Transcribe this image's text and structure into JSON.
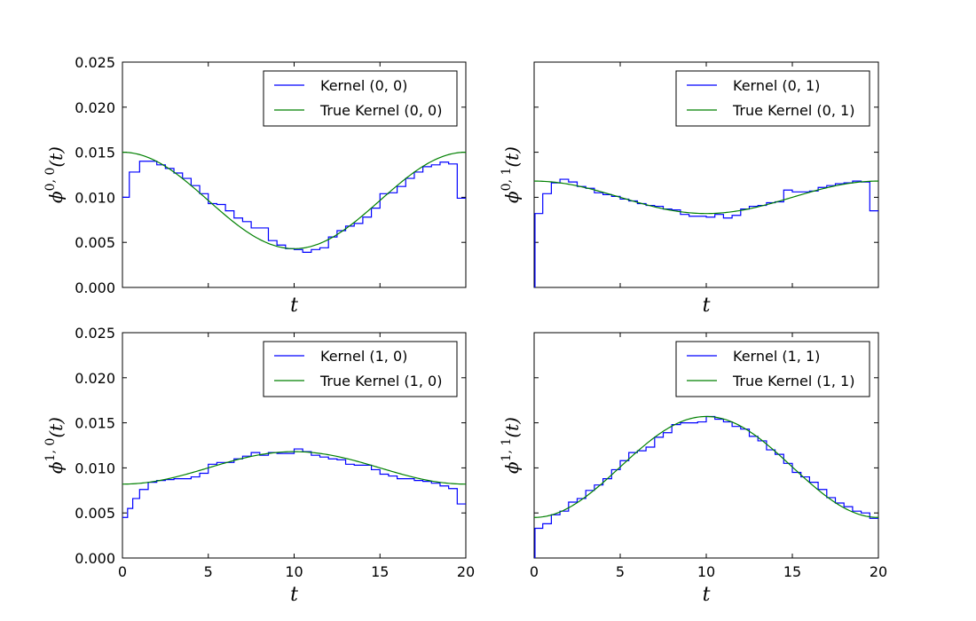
{
  "chart_data": [
    {
      "type": "line",
      "xlabel": "t",
      "ylabel": {
        "base": "ϕ",
        "sup": "0, 0",
        "arg": "(t)"
      },
      "xlim": [
        0,
        20
      ],
      "ylim": [
        0,
        0.025
      ],
      "xticks": [
        "0",
        "5",
        "10",
        "15",
        "20"
      ],
      "yticks": [
        "0.000",
        "0.005",
        "0.010",
        "0.015",
        "0.020",
        "0.025"
      ],
      "show_xticklabels": false,
      "show_yticklabels": true,
      "grid": false,
      "legend_position": "top-right",
      "series": [
        {
          "name": "Kernel (0, 0)",
          "color": "#0000ff",
          "step": true,
          "x": [
            0,
            0.4,
            1.0,
            2.0,
            2.5,
            3.0,
            3.5,
            4.0,
            4.5,
            5.0,
            5.5,
            6.0,
            6.5,
            7.0,
            7.5,
            8.0,
            8.5,
            9.0,
            9.5,
            10.0,
            10.5,
            11.0,
            11.5,
            12.0,
            12.5,
            13.0,
            13.5,
            14.0,
            14.5,
            15.0,
            15.5,
            16.0,
            16.5,
            17.0,
            17.5,
            18.0,
            18.5,
            19.0,
            19.5,
            20.0
          ],
          "y": [
            0.01,
            0.0128,
            0.014,
            0.0136,
            0.0132,
            0.0127,
            0.0121,
            0.0113,
            0.0104,
            0.0093,
            0.0092,
            0.0085,
            0.0077,
            0.0073,
            0.0066,
            0.0066,
            0.0052,
            0.0047,
            0.0043,
            0.0042,
            0.0039,
            0.0042,
            0.0044,
            0.0056,
            0.0063,
            0.0068,
            0.0071,
            0.0078,
            0.0088,
            0.0104,
            0.0105,
            0.0112,
            0.0121,
            0.0128,
            0.0134,
            0.0136,
            0.0139,
            0.0137,
            0.0099,
            0.0099
          ]
        },
        {
          "name": "True Kernel (0, 0)",
          "color": "#008000",
          "mean": 0.00965,
          "amplitude": 0.00535,
          "phase": "max"
        }
      ]
    },
    {
      "type": "line",
      "xlabel": "t",
      "ylabel": {
        "base": "ϕ",
        "sup": "0, 1",
        "arg": "(t)"
      },
      "xlim": [
        0,
        20
      ],
      "ylim": [
        0,
        0.025
      ],
      "xticks": [
        "0",
        "5",
        "10",
        "15",
        "20"
      ],
      "yticks": [
        "0.000",
        "0.005",
        "0.010",
        "0.015",
        "0.020",
        "0.025"
      ],
      "show_xticklabels": false,
      "show_yticklabels": false,
      "grid": false,
      "legend_position": "top-right",
      "series": [
        {
          "name": "Kernel (0, 1)",
          "color": "#0000ff",
          "step": true,
          "x": [
            0,
            0.05,
            0.5,
            1.0,
            1.5,
            2.0,
            2.5,
            3.0,
            3.5,
            4.0,
            4.5,
            5.0,
            5.5,
            6.0,
            6.5,
            7.0,
            7.5,
            8.0,
            8.5,
            9.0,
            9.5,
            10.0,
            10.5,
            11.0,
            11.5,
            12.0,
            12.5,
            13.0,
            13.5,
            14.0,
            14.5,
            15.0,
            15.5,
            16.0,
            16.5,
            17.0,
            17.5,
            18.0,
            18.5,
            19.0,
            19.5,
            20.0
          ],
          "y": [
            0.0,
            0.0082,
            0.0104,
            0.0116,
            0.012,
            0.0117,
            0.0112,
            0.011,
            0.0105,
            0.0103,
            0.0101,
            0.0098,
            0.0096,
            0.0093,
            0.0091,
            0.009,
            0.0087,
            0.0086,
            0.0081,
            0.0079,
            0.0079,
            0.0078,
            0.0081,
            0.0077,
            0.008,
            0.0087,
            0.009,
            0.0091,
            0.0094,
            0.0095,
            0.0108,
            0.0106,
            0.0106,
            0.0107,
            0.0111,
            0.0113,
            0.0115,
            0.0116,
            0.0118,
            0.0117,
            0.0085,
            0.0085
          ]
        },
        {
          "name": "True Kernel (0, 1)",
          "color": "#008000",
          "mean": 0.01,
          "amplitude": 0.0018,
          "phase": "max"
        }
      ]
    },
    {
      "type": "line",
      "xlabel": "t",
      "ylabel": {
        "base": "ϕ",
        "sup": "1, 0",
        "arg": "(t)"
      },
      "xlim": [
        0,
        20
      ],
      "ylim": [
        0,
        0.025
      ],
      "xticks": [
        "0",
        "5",
        "10",
        "15",
        "20"
      ],
      "yticks": [
        "0.000",
        "0.005",
        "0.010",
        "0.015",
        "0.020",
        "0.025"
      ],
      "show_xticklabels": true,
      "show_yticklabels": true,
      "grid": false,
      "legend_position": "top-right",
      "series": [
        {
          "name": "Kernel (1, 0)",
          "color": "#0000ff",
          "step": true,
          "x": [
            0,
            0.3,
            0.6,
            1.0,
            1.5,
            2.0,
            2.5,
            3.0,
            3.5,
            4.0,
            4.5,
            5.0,
            5.5,
            6.0,
            6.5,
            7.0,
            7.5,
            8.0,
            8.5,
            9.0,
            9.5,
            10.0,
            10.5,
            11.0,
            11.5,
            12.0,
            12.5,
            13.0,
            13.5,
            14.0,
            14.5,
            15.0,
            15.5,
            16.0,
            16.5,
            17.0,
            17.5,
            18.0,
            18.5,
            19.0,
            19.5,
            20.0
          ],
          "y": [
            0.0045,
            0.0055,
            0.0066,
            0.0076,
            0.0084,
            0.0086,
            0.0087,
            0.0088,
            0.0088,
            0.009,
            0.0094,
            0.0104,
            0.0106,
            0.0106,
            0.011,
            0.0113,
            0.0117,
            0.0114,
            0.0117,
            0.0116,
            0.0116,
            0.0121,
            0.0118,
            0.0114,
            0.0112,
            0.011,
            0.0109,
            0.0104,
            0.0103,
            0.0103,
            0.0098,
            0.0093,
            0.0091,
            0.0088,
            0.0088,
            0.0086,
            0.0085,
            0.0083,
            0.008,
            0.0077,
            0.006,
            0.006
          ]
        },
        {
          "name": "True Kernel (1, 0)",
          "color": "#008000",
          "mean": 0.01,
          "amplitude": 0.0018,
          "phase": "min"
        }
      ]
    },
    {
      "type": "line",
      "xlabel": "t",
      "ylabel": {
        "base": "ϕ",
        "sup": "1, 1",
        "arg": "(t)"
      },
      "xlim": [
        0,
        20
      ],
      "ylim": [
        0,
        0.025
      ],
      "xticks": [
        "0",
        "5",
        "10",
        "15",
        "20"
      ],
      "yticks": [
        "0.000",
        "0.005",
        "0.010",
        "0.015",
        "0.020",
        "0.025"
      ],
      "show_xticklabels": true,
      "show_yticklabels": false,
      "grid": false,
      "legend_position": "top-right",
      "series": [
        {
          "name": "Kernel (1, 1)",
          "color": "#0000ff",
          "step": true,
          "x": [
            0,
            0.05,
            0.5,
            1.0,
            1.5,
            2.0,
            2.5,
            3.0,
            3.5,
            4.0,
            4.5,
            5.0,
            5.5,
            6.0,
            6.5,
            7.0,
            7.5,
            8.0,
            8.5,
            9.0,
            9.5,
            10.0,
            10.5,
            11.0,
            11.5,
            12.0,
            12.5,
            13.0,
            13.5,
            14.0,
            14.5,
            15.0,
            15.5,
            16.0,
            16.5,
            17.0,
            17.5,
            18.0,
            18.5,
            19.0,
            19.5,
            20.0
          ],
          "y": [
            0.0,
            0.0033,
            0.0038,
            0.0048,
            0.0052,
            0.0062,
            0.0066,
            0.0075,
            0.0081,
            0.0088,
            0.0098,
            0.0108,
            0.0117,
            0.0119,
            0.0123,
            0.0134,
            0.0139,
            0.0148,
            0.015,
            0.015,
            0.0151,
            0.0157,
            0.0154,
            0.0151,
            0.0146,
            0.0143,
            0.0135,
            0.013,
            0.012,
            0.0115,
            0.0105,
            0.0095,
            0.009,
            0.0084,
            0.0076,
            0.0067,
            0.0061,
            0.0057,
            0.0052,
            0.005,
            0.0044,
            0.0044
          ]
        },
        {
          "name": "True Kernel (1, 1)",
          "color": "#008000",
          "mean": 0.0101,
          "amplitude": 0.0056,
          "phase": "min"
        }
      ]
    }
  ]
}
